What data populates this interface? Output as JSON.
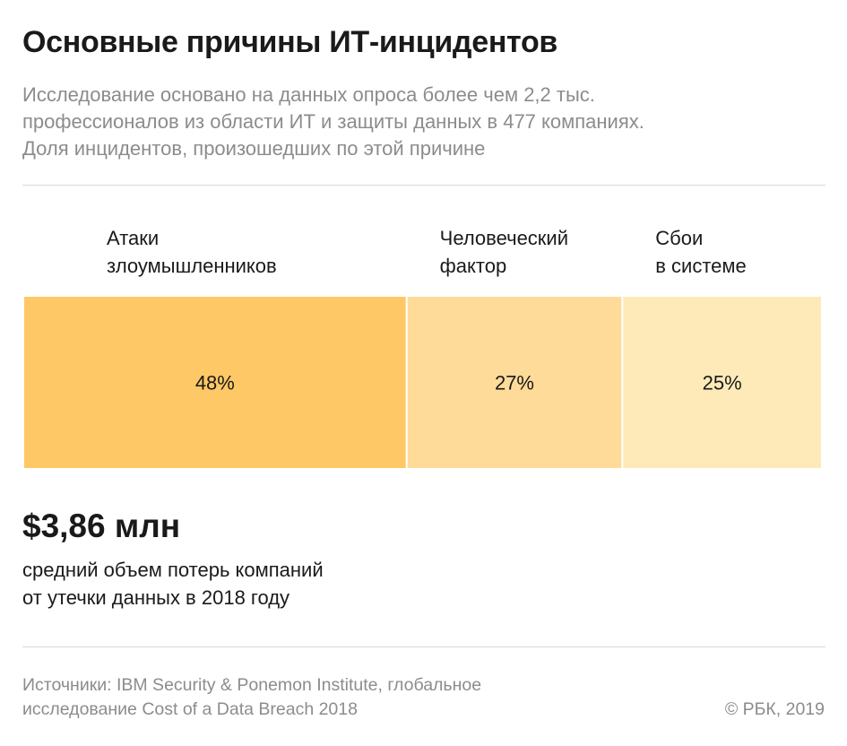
{
  "header": {
    "title": "Основные причины ИТ-инцидентов",
    "subtitle_lines": [
      "Исследование основано на данных опроса более чем 2,2 тыс.",
      "профессионалов из области ИТ и защиты данных в 477 компаниях.",
      "Доля инцидентов, произошедших по этой причине"
    ]
  },
  "chart_data": {
    "type": "bar",
    "orientation": "horizontal-stacked",
    "unit": "%",
    "categories": [
      "Атаки злоумышленников",
      "Человеческий фактор",
      "Сбои в системе"
    ],
    "category_lines": [
      [
        "Атаки",
        "злоумышленников"
      ],
      [
        "Человеческий",
        "фактор"
      ],
      [
        "Сбои",
        "в системе"
      ]
    ],
    "values": [
      48,
      27,
      25
    ],
    "value_labels": [
      "48%",
      "27%",
      "25%"
    ],
    "colors": [
      "#fec866",
      "#fedb98",
      "#feeab9"
    ],
    "title": "",
    "xlabel": "",
    "ylabel": "",
    "grid": false
  },
  "highlight": {
    "value": "$3,86 млн",
    "description_lines": [
      "средний объем потерь компаний",
      "от утечки данных в 2018 году"
    ]
  },
  "footer": {
    "source_lines": [
      "Источники: IBM Security & Ponemon Institute, глобальное",
      "исследование Cost of a Data Breach 2018"
    ],
    "copyright": "© РБК, 2019"
  }
}
